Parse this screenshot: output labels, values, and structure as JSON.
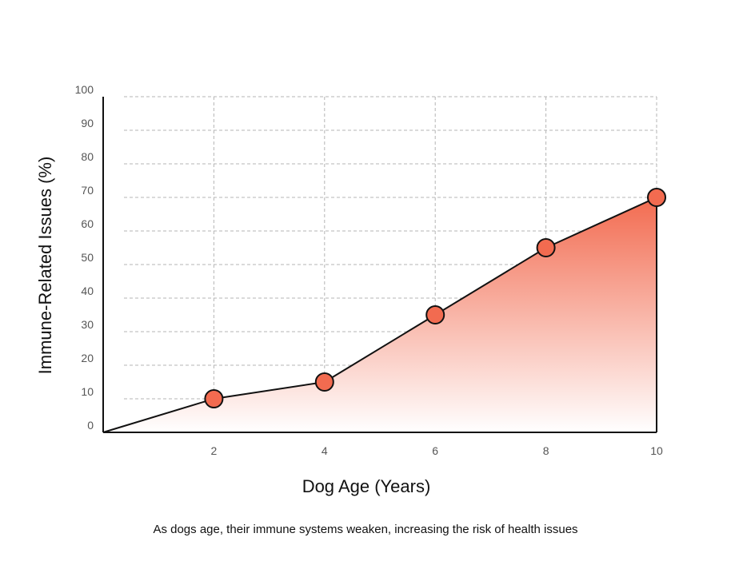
{
  "chart_data": {
    "type": "area",
    "x": [
      0,
      2,
      4,
      6,
      8,
      10
    ],
    "y": [
      0,
      10,
      15,
      35,
      55,
      70
    ],
    "marker_x": [
      2,
      4,
      6,
      8,
      10
    ],
    "marker_y": [
      10,
      15,
      35,
      55,
      70
    ],
    "xticks": [
      2,
      4,
      6,
      8,
      10
    ],
    "yticks": [
      0,
      10,
      20,
      30,
      40,
      50,
      60,
      70,
      80,
      90,
      100
    ],
    "xlim": [
      0,
      10
    ],
    "ylim": [
      0,
      100
    ],
    "xlabel": "Dog Age (Years)",
    "ylabel": "Immune-Related Issues (%)",
    "grid": true,
    "colors": {
      "marker": "#f26b50",
      "fill_top": "#f26b50",
      "fill_bottom": "#ffffff",
      "line": "#111111"
    }
  },
  "caption": "As dogs age, their immune systems weaken, increasing the risk of health issues"
}
